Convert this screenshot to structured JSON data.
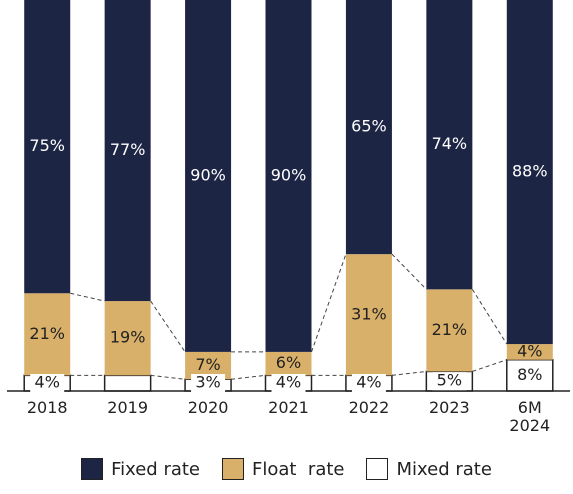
{
  "chart_data": {
    "type": "stacked_bar",
    "categories": [
      "2018",
      "2019",
      "2020",
      "2021",
      "2022",
      "2023",
      "6M 2024"
    ],
    "ylim": [
      0,
      100
    ],
    "series": [
      {
        "name": "Fixed rate",
        "color": "#1d2545",
        "values": [
          75,
          77,
          90,
          90,
          65,
          74,
          88
        ],
        "value_labels": [
          "75%",
          "77%",
          "90%",
          "90%",
          "65%",
          "74%",
          "88%"
        ]
      },
      {
        "name": "Float  rate",
        "color": "#d9b06a",
        "values": [
          21,
          19,
          7,
          6,
          31,
          21,
          4
        ],
        "value_labels": [
          "21%",
          "19%",
          "7%",
          "6%",
          "31%",
          "21%",
          "4%"
        ]
      },
      {
        "name": "Mixed rate",
        "color": "#ffffff",
        "values": [
          4,
          4,
          3,
          4,
          4,
          5,
          8
        ],
        "value_labels": [
          "4%",
          null,
          "3%",
          "4%",
          "4%",
          "5%",
          "8%"
        ]
      }
    ]
  }
}
